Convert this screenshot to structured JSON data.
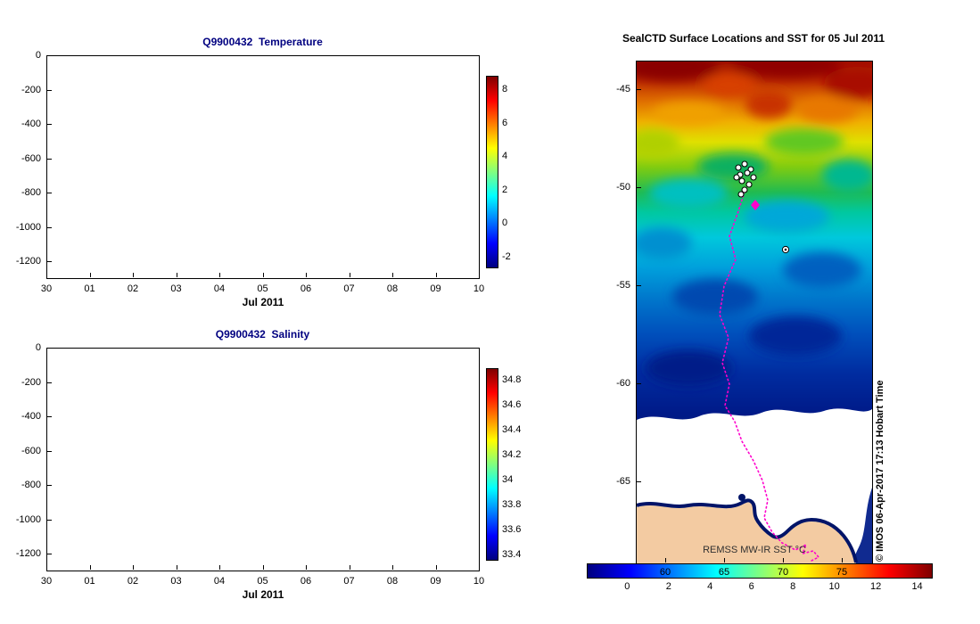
{
  "figure": {
    "background": "#ffffff"
  },
  "temperature_plot": {
    "title": "Q9900432  Temperature",
    "xlabel": "Jul 2011",
    "x_tick_labels": [
      "30",
      "01",
      "02",
      "03",
      "04",
      "05",
      "06",
      "07",
      "08",
      "09",
      "10"
    ],
    "y_tick_labels": [
      "0",
      "-200",
      "-400",
      "-600",
      "-800",
      "-1000",
      "-1200"
    ],
    "colorbar_tick_labels": [
      "8",
      "6",
      "4",
      "2",
      "0",
      "-2"
    ]
  },
  "salinity_plot": {
    "title": "Q9900432  Salinity",
    "xlabel": "Jul 2011",
    "x_tick_labels": [
      "30",
      "01",
      "02",
      "03",
      "04",
      "05",
      "06",
      "07",
      "08",
      "09",
      "10"
    ],
    "y_tick_labels": [
      "0",
      "-200",
      "-400",
      "-600",
      "-800",
      "-1000",
      "-1200"
    ],
    "colorbar_tick_labels": [
      "34.8",
      "34.6",
      "34.4",
      "34.2",
      "34",
      "33.8",
      "33.6",
      "33.4"
    ]
  },
  "map_panel": {
    "title": "SealCTD Surface Locations and SST for 05 Jul 2011",
    "y_tick_labels": [
      "-45",
      "-50",
      "-55",
      "-60",
      "-65"
    ],
    "x_tick_labels": [
      "60",
      "65",
      "70",
      "75"
    ],
    "colorbar_tick_labels": [
      "0",
      "2",
      "4",
      "6",
      "8",
      "10",
      "12",
      "14"
    ],
    "sst_product_label": "REMSS MW-IR SST °C",
    "credit": "© IMOS 06-Apr-2017 17:13 Hobart Time",
    "colors": {
      "track": "#ff00cc",
      "land": "#f3cba2",
      "ice": "#ffffff",
      "marker_fill": "#ffffff",
      "marker_stroke": "#000000",
      "coastline": "#001468"
    }
  },
  "chart_data": [
    {
      "type": "heatmap",
      "title": "Q9900432  Temperature",
      "xlabel": "Jul 2011",
      "x_tick_labels": [
        "30",
        "01",
        "02",
        "03",
        "04",
        "05",
        "06",
        "07",
        "08",
        "09",
        "10"
      ],
      "y_ticks_depth_m": [
        0,
        -200,
        -400,
        -600,
        -800,
        -1000,
        -1200
      ],
      "ylim": [
        -1350,
        0
      ],
      "colorbar": {
        "colormap": "jet",
        "ticks": [
          8,
          6,
          4,
          2,
          0,
          -2
        ],
        "range": [
          -2.7,
          8.8
        ]
      },
      "values": [],
      "note": "axes rendered blank — no temperature section data drawn"
    },
    {
      "type": "heatmap",
      "title": "Q9900432  Salinity",
      "xlabel": "Jul 2011",
      "x_tick_labels": [
        "30",
        "01",
        "02",
        "03",
        "04",
        "05",
        "06",
        "07",
        "08",
        "09",
        "10"
      ],
      "y_ticks_depth_m": [
        0,
        -200,
        -400,
        -600,
        -800,
        -1000,
        -1200
      ],
      "ylim": [
        -1350,
        0
      ],
      "colorbar": {
        "colormap": "jet",
        "ticks": [
          34.8,
          34.6,
          34.4,
          34.2,
          34,
          33.8,
          33.6,
          33.4
        ],
        "range": [
          33.35,
          34.89
        ]
      },
      "values": [],
      "note": "axes rendered blank — no salinity section data drawn"
    },
    {
      "type": "heatmap",
      "title": "SealCTD Surface Locations and SST for 05 Jul 2011",
      "x_ticks_longitude_deg_e": [
        60,
        65,
        70,
        75
      ],
      "y_ticks_latitude_deg": [
        -45,
        -50,
        -55,
        -60,
        -65
      ],
      "xlim": [
        57.5,
        77.5
      ],
      "ylim": [
        -69.3,
        -43.5
      ],
      "colorbar": {
        "colormap": "jet",
        "orientation": "horizontal",
        "ticks": [
          0,
          2,
          4,
          6,
          8,
          10,
          12,
          14
        ],
        "units": "°C"
      },
      "annotations": [
        "REMSS MW-IR SST °C",
        "© IMOS 06-Apr-2017 17:13 Hobart Time"
      ],
      "overlays": {
        "seal_surface_location_cluster": {
          "lon_approx": 66.6,
          "lat_approx": -49.4
        },
        "latest_location_diamond": {
          "lon_approx": 67.6,
          "lat_approx": -50.8
        },
        "secondary_marker": {
          "lon_approx": 70.2,
          "lat_approx": -53.1
        },
        "track_description": "magenta dotted seal track running south from the cluster to the Antarctic coast near 72E"
      },
      "field_description": "SST warm (12-14, dark red/orange) near -44, cooling southward through yellow/green/cyan/blue to below 0 (dark navy) near -58; white = ice / no data south of about -61; tan = Antarctic coast along bottom edge"
    }
  ]
}
